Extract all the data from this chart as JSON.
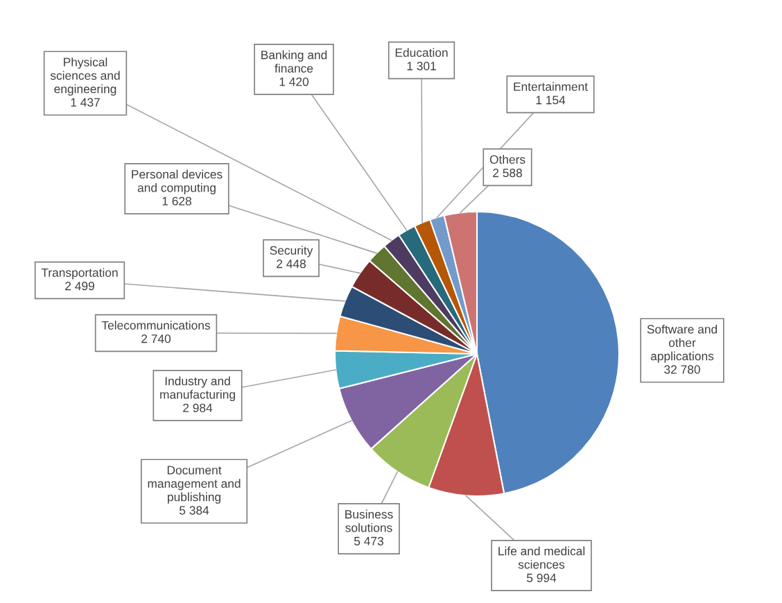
{
  "chart_data": {
    "type": "pie",
    "categories": [
      "Software and other applications",
      "Life and medical sciences",
      "Business solutions",
      "Document management and publishing",
      "Industry and manufacturing",
      "Telecommunications",
      "Transportation",
      "Security",
      "Personal devices and computing",
      "Physical sciences and engineering",
      "Banking and finance",
      "Education",
      "Entertainment",
      "Others"
    ],
    "values": [
      32780,
      5994,
      5473,
      5384,
      2984,
      2740,
      2499,
      2448,
      1628,
      1437,
      1420,
      1301,
      1154,
      2588
    ],
    "value_labels": [
      "32 780",
      "5 994",
      "5 473",
      "5 384",
      "2 984",
      "2 740",
      "2 499",
      "2 448",
      "1 628",
      "1 437",
      "1 420",
      "1 301",
      "1 154",
      "2 588"
    ],
    "colors": [
      "#4f81bd",
      "#c0504d",
      "#9bbb59",
      "#8064a2",
      "#4bacc6",
      "#f79646",
      "#2c4d75",
      "#772c2a",
      "#5f7530",
      "#4d3b62",
      "#276a7c",
      "#b65708",
      "#729aca",
      "#cd7371"
    ]
  }
}
